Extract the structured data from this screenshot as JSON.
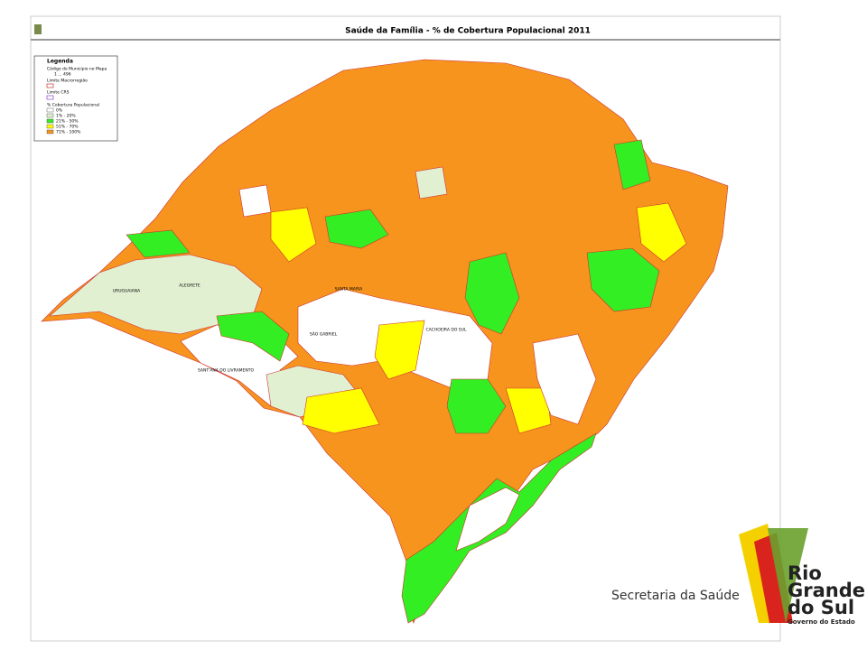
{
  "header": {
    "title": "Saúde da Família - % de Cobertura Populacional 2011"
  },
  "legend": {
    "title": "Legenda",
    "code_label": "Código do Município no Mapa",
    "code_range": "1 ... 496",
    "macro_limit": "Limite Macrorregião",
    "crs_limit": "Limite CRS",
    "coverage_title": "% Cobertura Populacional",
    "items": [
      {
        "label": "0%",
        "color": "#ffffff"
      },
      {
        "label": "1% - 20%",
        "color": "#e2f0d2"
      },
      {
        "label": "21% - 50%",
        "color": "#33ee22"
      },
      {
        "label": "51% - 70%",
        "color": "#ffff00"
      },
      {
        "label": "71% - 100%",
        "color": "#f7941d"
      }
    ]
  },
  "map": {
    "places": [
      "URUGUAIANA",
      "ALEGRETE",
      "SANTA MARIA",
      "SÃO GABRIEL",
      "CACHOEIRA DO SUL",
      "SANT'ANA DO LIVRAMENTO"
    ]
  },
  "footer": {
    "department": "Secretaria da Saúde",
    "logo_lines": [
      "Rio",
      "Grande",
      "do Sul"
    ],
    "logo_sub": "Governo do Estado"
  }
}
